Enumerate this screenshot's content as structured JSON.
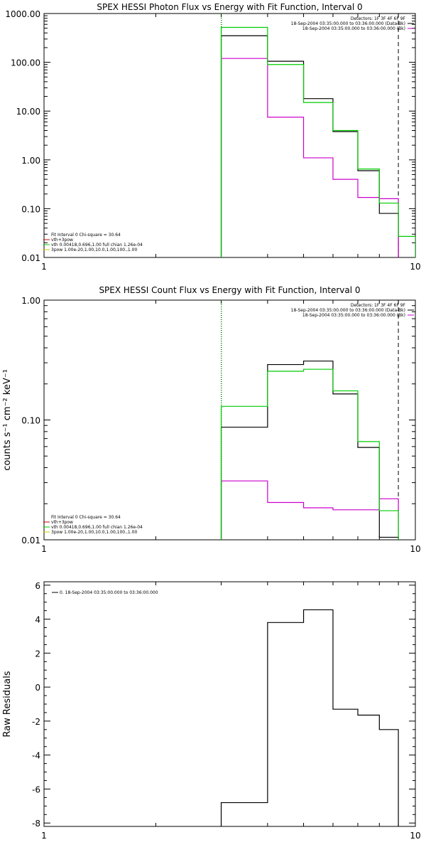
{
  "chart_data": [
    {
      "type": "line",
      "title": "SPEX HESSI Photon Flux vs Energy with Fit Function, Interval 0",
      "xlabel": "",
      "ylabel": "",
      "xscale": "log",
      "yscale": "log",
      "xlim": [
        1,
        10
      ],
      "ylim": [
        0.01,
        1000
      ],
      "xticks": [
        "1",
        "10"
      ],
      "yticks": [
        {
          "v": 1000,
          "label": "1000.00"
        },
        {
          "v": 100,
          "label": "100.00"
        },
        {
          "v": 10,
          "label": "10.00"
        },
        {
          "v": 1,
          "label": "1.00"
        },
        {
          "v": 0.1,
          "label": "0.10"
        },
        {
          "v": 0.01,
          "label": "0.01"
        }
      ],
      "vlines": [
        {
          "x": 3,
          "style": "dotted",
          "color": "#000000"
        },
        {
          "x": 3,
          "style": "dotted",
          "color": "#00cc00"
        },
        {
          "x": 9,
          "style": "dashed",
          "color": "#000000"
        }
      ],
      "legend_top_right": [
        {
          "text": "Detectors: 1F 3F 4F 6F 9F",
          "color": null
        },
        {
          "text": "18-Sep-2004 03:35:00.000 to 03:36:00.000 (Data-Bk)",
          "color": "#000000"
        },
        {
          "text": "18-Sep-2004 03:35:00.000 to 03:36:00.000 (Bk)",
          "color": "#cc00cc"
        }
      ],
      "legend_bottom_left": [
        {
          "text": "Fit Interval 0   Chi-square = 30.64",
          "color": null
        },
        {
          "text": "vth+3pow",
          "color": "#cc0000"
        },
        {
          "text": "vth 0.00418,0.696,1.00  full chian 1.26e-04",
          "color": "#00cc00"
        },
        {
          "text": "3pow 1.00e-20,1.00,10.0,1.00,100.,1.00",
          "color": "#cccc00"
        }
      ],
      "edges": [
        3,
        4,
        5,
        6,
        7,
        8,
        9,
        10
      ],
      "series": [
        {
          "name": "Data-Bk",
          "color": "#000000",
          "edges": [
            3,
            4,
            5,
            6,
            7,
            8,
            9
          ],
          "values": [
            350,
            105,
            18,
            3.8,
            0.6,
            0.08
          ]
        },
        {
          "name": "Bk",
          "color": "#cc00cc",
          "edges": [
            3,
            4,
            5,
            6,
            7,
            8,
            9
          ],
          "values": [
            120,
            7.5,
            1.1,
            0.4,
            0.17,
            0.16
          ]
        },
        {
          "name": "vth",
          "color": "#00cc00",
          "edges": [
            3,
            4,
            5,
            6,
            7,
            8,
            9,
            10
          ],
          "values": [
            520,
            90,
            15,
            4.0,
            0.65,
            0.13,
            0.027
          ]
        }
      ]
    },
    {
      "type": "line",
      "title": "SPEX HESSI Count Flux vs Energy with Fit Function, Interval 0",
      "xlabel": "",
      "ylabel": "counts s⁻¹ cm⁻² keV⁻¹",
      "xscale": "log",
      "yscale": "log",
      "xlim": [
        1,
        10
      ],
      "ylim": [
        0.01,
        1
      ],
      "xticks": [
        "1",
        "10"
      ],
      "yticks": [
        {
          "v": 1,
          "label": "1.00"
        },
        {
          "v": 0.1,
          "label": "0.10"
        },
        {
          "v": 0.01,
          "label": "0.01"
        }
      ],
      "vlines": [
        {
          "x": 3,
          "style": "dotted",
          "color": "#000000"
        },
        {
          "x": 3,
          "style": "dotted",
          "color": "#00cc00"
        },
        {
          "x": 9,
          "style": "dashed",
          "color": "#000000"
        }
      ],
      "legend_top_right": [
        {
          "text": "Detectors: 1F 3F 4F 6F 9F",
          "color": null
        },
        {
          "text": "18-Sep-2004 03:35:00.000 to 03:36:00.000 (Data-Bk)",
          "color": "#000000"
        },
        {
          "text": "18-Sep-2004 03:35:00.000 to 03:36:00.000 (Bk)",
          "color": "#cc00cc"
        }
      ],
      "legend_bottom_left": [
        {
          "text": "Fit Interval 0   Chi-square = 30.64",
          "color": null
        },
        {
          "text": "vth+3pow",
          "color": "#cc0000"
        },
        {
          "text": "vth 0.00418,0.696,1.00  full chian 1.26e-04",
          "color": "#00cc00"
        },
        {
          "text": "3pow 1.00e-20,1.00,10.0,1.00,100.,1.00",
          "color": "#cccc00"
        }
      ],
      "series": [
        {
          "name": "Data-Bk",
          "color": "#000000",
          "edges": [
            3,
            4,
            5,
            6,
            7,
            8,
            9
          ],
          "values": [
            0.087,
            0.29,
            0.31,
            0.165,
            0.059,
            0.0105
          ]
        },
        {
          "name": "Bk",
          "color": "#cc00cc",
          "edges": [
            3,
            4,
            5,
            6,
            7,
            8,
            9
          ],
          "values": [
            0.031,
            0.0205,
            0.0185,
            0.0178,
            0.0178,
            0.022
          ]
        },
        {
          "name": "vth",
          "color": "#00cc00",
          "edges": [
            3,
            4,
            5,
            6,
            7,
            8,
            9
          ],
          "values": [
            0.13,
            0.255,
            0.265,
            0.175,
            0.066,
            0.0175
          ]
        }
      ]
    },
    {
      "type": "line",
      "title": "",
      "xlabel": "",
      "ylabel": "Raw Residuals",
      "xscale": "log",
      "yscale": "linear",
      "xlim": [
        1,
        10
      ],
      "ylim": [
        -8.2,
        6.2
      ],
      "xticks": [
        "1",
        "10"
      ],
      "yticks": [
        {
          "v": 6,
          "label": "6"
        },
        {
          "v": 4,
          "label": "4"
        },
        {
          "v": 2,
          "label": "2"
        },
        {
          "v": 0,
          "label": "0"
        },
        {
          "v": -2,
          "label": "-2"
        },
        {
          "v": -4,
          "label": "-4"
        },
        {
          "v": -6,
          "label": "-6"
        },
        {
          "v": -8,
          "label": "-8"
        }
      ],
      "vlines": [],
      "legend_top_left": [
        {
          "text": "0. 18-Sep-2004 03:35:00.000 to 03:36:00.000",
          "color": "#000000"
        }
      ],
      "series": [
        {
          "name": "0. 18-Sep-2004 03:35:00.000 to 03:36:00.000",
          "color": "#000000",
          "edges": [
            3,
            4,
            5,
            6,
            7,
            8,
            9
          ],
          "values": [
            -6.8,
            3.8,
            4.55,
            -1.3,
            -1.65,
            -2.5
          ],
          "clip_bottom": true
        }
      ]
    }
  ]
}
